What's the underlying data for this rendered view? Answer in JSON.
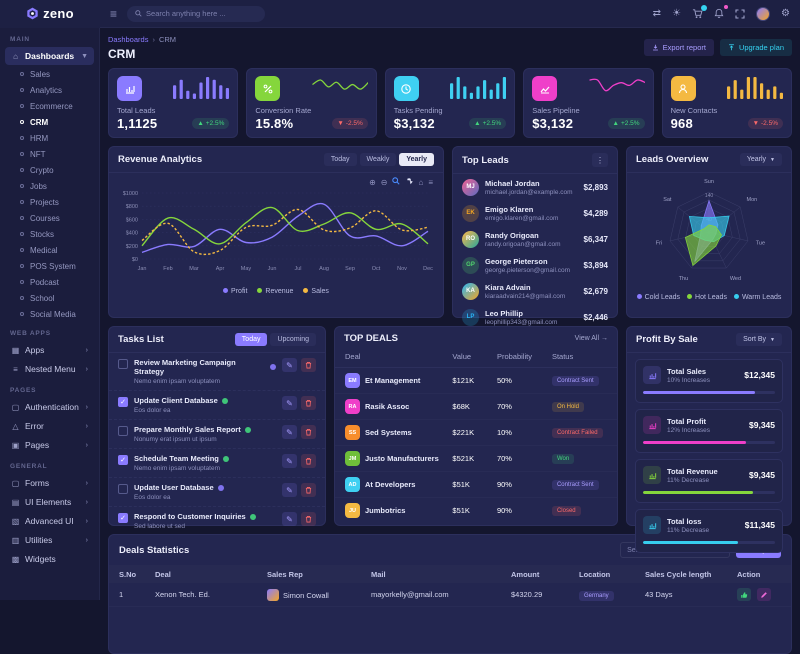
{
  "navbar": {
    "logo_text": "zeno",
    "search_placeholder": "Search anything here ..."
  },
  "sidebar": {
    "main_label": "MAIN",
    "dashboards_label": "Dashboards",
    "dashboard_items": [
      "Sales",
      "Analytics",
      "Ecommerce",
      "CRM",
      "HRM",
      "NFT",
      "Crypto",
      "Jobs",
      "Projects",
      "Courses",
      "Stocks",
      "Medical",
      "POS System",
      "Podcast",
      "School",
      "Social Media"
    ],
    "webapps_label": "WEB APPS",
    "webapps_items": [
      "Apps",
      "Nested Menu"
    ],
    "pages_label": "PAGES",
    "pages_items": [
      "Authentication",
      "Error",
      "Pages"
    ],
    "general_label": "GENERAL",
    "general_items": [
      "Forms",
      "UI Elements",
      "Advanced UI",
      "Utilities",
      "Widgets"
    ]
  },
  "page": {
    "breadcrumb_root": "Dashboards",
    "breadcrumb_current": "CRM",
    "title": "CRM",
    "export_button": "Export report",
    "upgrade_button": "Upgrade plan"
  },
  "stats": {
    "cards": [
      {
        "label": "Total Leads",
        "value": "1,1125",
        "change": "+2.5%",
        "trend": "up",
        "trend_icon": "▲",
        "color": "#8a7bff",
        "spark_type": "bars",
        "spark": [
          5,
          7,
          3,
          2,
          6,
          8,
          7,
          5,
          4
        ]
      },
      {
        "label": "Conversion Rate",
        "value": "15.8%",
        "change": "-2.5%",
        "trend": "down",
        "trend_icon": "▼",
        "color": "#85d63c",
        "spark_type": "line",
        "spark": [
          5,
          7,
          4,
          6,
          3,
          5,
          3,
          6
        ]
      },
      {
        "label": "Tasks Pending",
        "value": "$3,132",
        "change": "+2.5%",
        "trend": "up",
        "trend_icon": "▲",
        "color": "#3fd0f2",
        "spark_type": "bars",
        "spark": [
          5,
          7,
          4,
          2,
          4,
          6,
          3,
          5,
          7
        ]
      },
      {
        "label": "Sales Pipeline",
        "value": "$3,132",
        "change": "+2.5%",
        "trend": "up",
        "trend_icon": "▲",
        "color": "#ef3fc9",
        "spark_type": "line",
        "spark": [
          6,
          6,
          2,
          4,
          5,
          4,
          6,
          5
        ]
      },
      {
        "label": "New Contacts",
        "value": "968",
        "change": "-2.5%",
        "trend": "down",
        "trend_icon": "▼",
        "color": "#f4b942",
        "spark_type": "bars",
        "spark": [
          4,
          6,
          3,
          7,
          7,
          5,
          3,
          4,
          2
        ]
      }
    ]
  },
  "revenue_analytics": {
    "title": "Revenue Analytics",
    "tabs": [
      "Today",
      "Weakly",
      "Yearly"
    ],
    "active_tab": "Yearly",
    "chart_data": {
      "type": "line",
      "x": [
        "Jan",
        "Feb",
        "Mar",
        "Apr",
        "May",
        "Jun",
        "Jul",
        "Aug",
        "Sep",
        "Oct",
        "Nov",
        "Dec"
      ],
      "ylim": [
        0,
        1000
      ],
      "yticks": [
        "$1000",
        "$800",
        "$600",
        "$400",
        "$200",
        "$0"
      ],
      "grid": true,
      "legend_position": "bottom",
      "series": [
        {
          "name": "Profit",
          "color": "#8a7bff",
          "dashed": false,
          "values": [
            100,
            220,
            190,
            450,
            250,
            330,
            650,
            830,
            350,
            350,
            200,
            420
          ]
        },
        {
          "name": "Revenue",
          "color": "#85d63c",
          "dashed": false,
          "values": [
            200,
            620,
            450,
            230,
            550,
            780,
            430,
            530,
            700,
            450,
            530,
            230
          ]
        },
        {
          "name": "Sales",
          "color": "#f4b942",
          "dashed": true,
          "values": [
            280,
            540,
            110,
            130,
            480,
            510,
            750,
            440,
            470,
            730,
            440,
            480
          ]
        }
      ]
    }
  },
  "top_leads": {
    "title": "Top Leads",
    "leads": [
      {
        "name": "Michael Jordan",
        "email": "michael.jordan@example.com",
        "amount": "$2,893",
        "avatar": "MJ",
        "color": "#f06292"
      },
      {
        "name": "Emigo Klaren",
        "email": "emigo.klaren@gmail.com",
        "amount": "$4,289",
        "avatar": "EK",
        "color": "#f5a623"
      },
      {
        "name": "Randy Origoan",
        "email": "randy.origoan@gmail.com",
        "amount": "$6,347",
        "avatar": "RO",
        "color": "#26a69a"
      },
      {
        "name": "George Pieterson",
        "email": "george.pieterson@gmail.com",
        "amount": "$3,894",
        "avatar": "GP",
        "color": "#52d66f"
      },
      {
        "name": "Kiara Advain",
        "email": "kiaraadvain214@gmail.com",
        "amount": "$2,679",
        "avatar": "KA",
        "color": "#8a7bff"
      },
      {
        "name": "Leo Phillip",
        "email": "leophillip343@gmail.com",
        "amount": "$2,446",
        "avatar": "LP",
        "color": "#29b6f6"
      }
    ]
  },
  "leads_overview": {
    "title": "Leads Overview",
    "period": "Yearly",
    "chart_data": {
      "type": "radar",
      "categories": [
        "Sun",
        "Mon",
        "Tue",
        "Wed",
        "Thu",
        "Fri",
        "Sat"
      ],
      "max": 140,
      "ticks": [
        "140",
        "40"
      ],
      "series": [
        {
          "name": "Cold Leads",
          "color": "#8a7bff",
          "values": [
            110,
            40,
            25,
            30,
            115,
            30,
            35
          ]
        },
        {
          "name": "Warm Leads",
          "color": "#37cdee",
          "values": [
            50,
            90,
            55,
            38,
            32,
            55,
            88
          ]
        },
        {
          "name": "Hot Leads",
          "color": "#85d63c",
          "values": [
            25,
            30,
            45,
            55,
            130,
            85,
            20
          ]
        }
      ],
      "legend": [
        "Cold Leads",
        "Hot Leads",
        "Warm Leads"
      ],
      "legend_colors": [
        "#8a7bff",
        "#85d63c",
        "#37cdee"
      ]
    }
  },
  "tasks": {
    "title": "Tasks List",
    "today_tab": "Today",
    "upcoming_tab": "Upcoming",
    "items": [
      {
        "title": "Review Marketing Campaign Strategy",
        "subtitle": "Nemo enim ipsam voluptatem",
        "done": false,
        "badge_color": "#8a7bff"
      },
      {
        "title": "Update Client Database",
        "subtitle": "Eos dolor ea",
        "done": true,
        "badge_color": "#42d77d"
      },
      {
        "title": "Prepare Monthly Sales Report",
        "subtitle": "Nonumy erat ipsum ut ipsum",
        "done": false,
        "badge_color": "#42d77d"
      },
      {
        "title": "Schedule Team Meeting",
        "subtitle": "Nemo enim ipsam voluptatem",
        "done": true,
        "badge_color": "#42d77d"
      },
      {
        "title": "Update User Database",
        "subtitle": "Eos dolor ea",
        "done": false,
        "badge_color": "#8a7bff"
      },
      {
        "title": "Respond to Customer Inquiries",
        "subtitle": "Sed labore ut sed",
        "done": true,
        "badge_color": "#42d77d"
      }
    ]
  },
  "top_deals": {
    "title": "TOP DEALS",
    "view_all": "View All →",
    "columns": [
      "Deal",
      "Value",
      "Probability",
      "Status"
    ],
    "rows": [
      {
        "name": "Et Management",
        "initials": "EM",
        "color": "#8a7bff",
        "value": "$121K",
        "probability": "50%",
        "status": "Contract Sent"
      },
      {
        "name": "Rasik Assoc",
        "initials": "RA",
        "color": "#ef3fc9",
        "value": "$68K",
        "probability": "70%",
        "status": "On Hold"
      },
      {
        "name": "Sed Systems",
        "initials": "SS",
        "color": "#f78d2c",
        "value": "$221K",
        "probability": "10%",
        "status": "Contract Failed"
      },
      {
        "name": "Justo Manufacturers",
        "initials": "JM",
        "color": "#6fbe3a",
        "value": "$521K",
        "probability": "70%",
        "status": "Won"
      },
      {
        "name": "At Developers",
        "initials": "AD",
        "color": "#3fd0f2",
        "value": "$51K",
        "probability": "90%",
        "status": "Contract Sent"
      },
      {
        "name": "Jumbotrics",
        "initials": "JU",
        "color": "#f4b942",
        "value": "$51K",
        "probability": "90%",
        "status": "Closed"
      }
    ]
  },
  "profit_by_sale": {
    "title": "Profit By Sale",
    "sort_label": "Sort By",
    "items": [
      {
        "title": "Total Sales",
        "subtitle": "10% Increases",
        "value": "$12,345",
        "color": "#8a7bff",
        "progress": 85
      },
      {
        "title": "Total Profit",
        "subtitle": "12% Increases",
        "value": "$9,345",
        "color": "#ef3fc9",
        "progress": 78
      },
      {
        "title": "Total Revenue",
        "subtitle": "11% Decrease",
        "value": "$9,345",
        "color": "#85d63c",
        "progress": 83
      },
      {
        "title": "Total loss",
        "subtitle": "11% Decrease",
        "value": "$11,345",
        "color": "#37cdee",
        "progress": 72
      }
    ]
  },
  "deals_statistics": {
    "title": "Deals Statistics",
    "search_placeholder": "Search Here",
    "sort_label": "Sort By",
    "columns": [
      "S.No",
      "Deal",
      "Sales Rep",
      "Mail",
      "Amount",
      "Location",
      "Sales Cycle length",
      "Action"
    ],
    "rows": [
      {
        "sno": "1",
        "deal": "Xenon Tech. Ed.",
        "rep": "Simon Cowall",
        "mail": "mayorkelly@gmail.com",
        "amount": "$4320.29",
        "location": "Germany",
        "cycle": "43 Days"
      }
    ]
  }
}
